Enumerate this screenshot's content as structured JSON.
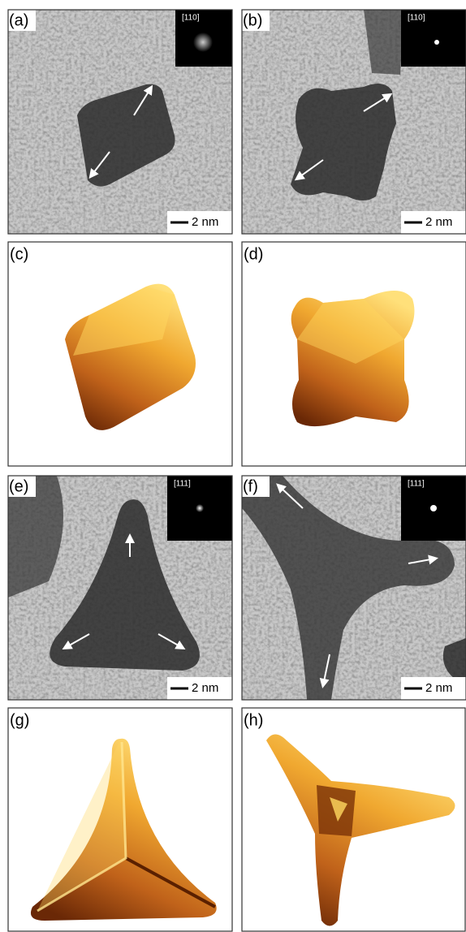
{
  "panels": [
    {
      "label": "(a)",
      "zone_axis": "[110]",
      "scale_bar": "2 nm"
    },
    {
      "label": "(b)",
      "zone_axis": "[110]",
      "scale_bar": "2 nm"
    },
    {
      "label": "(c)"
    },
    {
      "label": "(d)"
    },
    {
      "label": "(e)",
      "zone_axis": "[111]",
      "scale_bar": "2 nm"
    },
    {
      "label": "(f)",
      "zone_axis": "[111]",
      "scale_bar": "2 nm"
    },
    {
      "label": "(g)"
    },
    {
      "label": "(h)"
    }
  ]
}
